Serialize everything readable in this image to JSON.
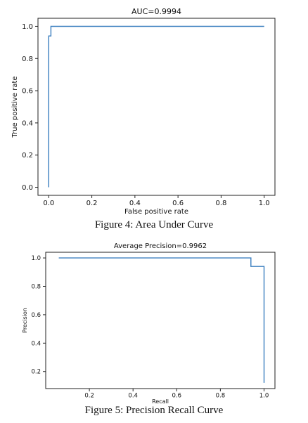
{
  "chart_data": [
    {
      "type": "line",
      "title": "AUC=0.9994",
      "xlabel": "False positive rate",
      "ylabel": "True positive rate",
      "xlim": [
        -0.05,
        1.05
      ],
      "ylim": [
        -0.05,
        1.05
      ],
      "xticks": [
        0.0,
        0.2,
        0.4,
        0.6,
        0.8,
        1.0
      ],
      "xtick_labels": [
        "0.0",
        "0.2",
        "0.4",
        "0.6",
        "0.8",
        "1.0"
      ],
      "yticks": [
        0.0,
        0.2,
        0.4,
        0.6,
        0.8,
        1.0
      ],
      "ytick_labels": [
        "0.0",
        "0.2",
        "0.4",
        "0.6",
        "0.8",
        "1.0"
      ],
      "grid": false,
      "line_color": "#3a7ebf",
      "series": [
        {
          "x": [
            0.0,
            0.0,
            0.0,
            0.01,
            0.01,
            1.0
          ],
          "y": [
            0.0,
            0.94,
            0.94,
            0.94,
            1.0,
            1.0
          ]
        }
      ]
    },
    {
      "type": "line",
      "title": "Average Precision=0.9962",
      "xlabel": "Recall",
      "ylabel": "Precision",
      "xlim": [
        0.0,
        1.05
      ],
      "ylim": [
        0.08,
        1.04
      ],
      "xticks": [
        0.2,
        0.4,
        0.6,
        0.8,
        1.0
      ],
      "xtick_labels": [
        "0.2",
        "0.4",
        "0.6",
        "0.8",
        "1.0"
      ],
      "yticks": [
        0.2,
        0.4,
        0.6,
        0.8,
        1.0
      ],
      "ytick_labels": [
        "0.2",
        "0.4",
        "0.6",
        "0.8",
        "1.0"
      ],
      "grid": false,
      "line_color": "#3a7ebf",
      "series": [
        {
          "x": [
            0.06,
            0.94,
            0.94,
            1.0,
            1.0
          ],
          "y": [
            1.0,
            1.0,
            0.94,
            0.94,
            0.12
          ]
        }
      ]
    }
  ],
  "captions": {
    "fig4": "Figure 4: Area Under Curve",
    "fig5": "Figure 5: Precision Recall Curve"
  }
}
